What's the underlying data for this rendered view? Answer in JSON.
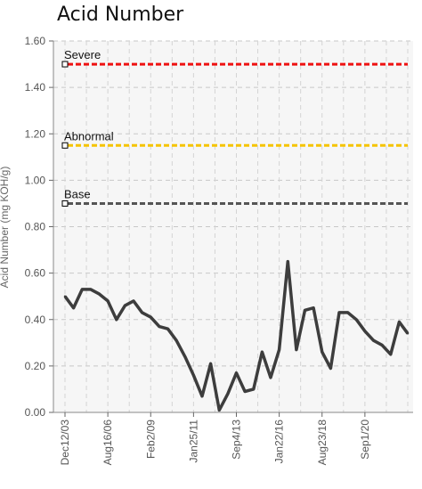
{
  "chart_data": {
    "type": "line",
    "title": "Acid Number",
    "ylabel": "Acid Number (mg KOH/g)",
    "xlabel": "",
    "ylim": [
      0,
      1.6
    ],
    "grid": true,
    "y_ticks": [
      "0.00",
      "0.20",
      "0.40",
      "0.60",
      "0.80",
      "1.00",
      "1.20",
      "1.40",
      "1.60"
    ],
    "x_tick_labels": [
      "Dec12/03",
      "Aug16/06",
      "Feb2/09",
      "Jan25/11",
      "Sep4/13",
      "Jan22/16",
      "Aug23/18",
      "Sep1/20"
    ],
    "thresholds": [
      {
        "name": "Severe",
        "value": 1.5,
        "color": "#ee1111"
      },
      {
        "name": "Abnormal",
        "value": 1.15,
        "color": "#f5c400"
      },
      {
        "name": "Base",
        "value": 0.9,
        "color": "#555555"
      }
    ],
    "series": [
      {
        "color": "#3d3d3d",
        "values": [
          0.5,
          0.45,
          0.53,
          0.53,
          0.51,
          0.48,
          0.4,
          0.46,
          0.48,
          0.43,
          0.41,
          0.37,
          0.36,
          0.31,
          0.24,
          0.16,
          0.07,
          0.21,
          0.01,
          0.08,
          0.17,
          0.09,
          0.1,
          0.26,
          0.15,
          0.27,
          0.65,
          0.27,
          0.44,
          0.45,
          0.26,
          0.19,
          0.43,
          0.43,
          0.4,
          0.35,
          0.31,
          0.29,
          0.25,
          0.39,
          0.34
        ]
      }
    ]
  }
}
